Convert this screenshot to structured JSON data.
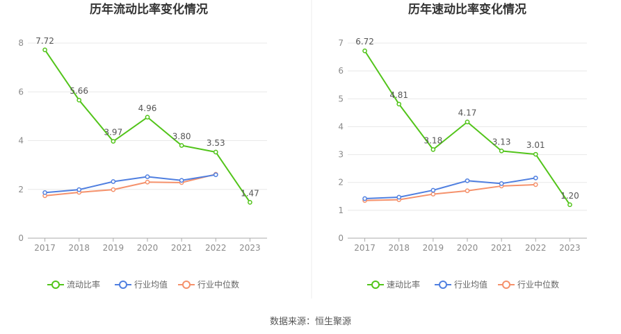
{
  "colors": {
    "primary": "#52c41a",
    "industry_avg": "#4f7fe0",
    "industry_median": "#f5916b",
    "grid": "#e8e8e8",
    "axis": "#aaaaaa",
    "divider": "#eeeeee"
  },
  "source_text": "数据来源：恒生聚源",
  "chart_data": [
    {
      "type": "line",
      "title": "历年流动比率变化情况",
      "xlabel": "",
      "ylabel": "",
      "categories": [
        "2017",
        "2018",
        "2019",
        "2020",
        "2021",
        "2022",
        "2023"
      ],
      "ylim": [
        0,
        8
      ],
      "yticks": [
        0,
        2,
        4,
        6,
        8
      ],
      "grid": true,
      "legend_position": "bottom",
      "series": [
        {
          "name": "流动比率",
          "color_key": "primary",
          "values": [
            7.72,
            5.66,
            3.97,
            4.96,
            3.8,
            3.53,
            1.47
          ],
          "labels": [
            "7.72",
            "5.66",
            "3.97",
            "4.96",
            "3.80",
            "3.53",
            "1.47"
          ]
        },
        {
          "name": "行业均值",
          "color_key": "industry_avg",
          "values": [
            1.87,
            1.99,
            2.32,
            2.52,
            2.37,
            2.6,
            null
          ]
        },
        {
          "name": "行业中位数",
          "color_key": "industry_median",
          "values": [
            1.74,
            1.88,
            1.99,
            2.3,
            2.28,
            2.62,
            null
          ]
        }
      ]
    },
    {
      "type": "line",
      "title": "历年速动比率变化情况",
      "xlabel": "",
      "ylabel": "",
      "categories": [
        "2017",
        "2018",
        "2019",
        "2020",
        "2021",
        "2022",
        "2023"
      ],
      "ylim": [
        0,
        7
      ],
      "yticks": [
        0,
        1,
        2,
        3,
        4,
        5,
        6,
        7
      ],
      "grid": true,
      "legend_position": "bottom",
      "series": [
        {
          "name": "速动比率",
          "color_key": "primary",
          "values": [
            6.72,
            4.81,
            3.18,
            4.17,
            3.13,
            3.01,
            1.2
          ],
          "labels": [
            "6.72",
            "4.81",
            "3.18",
            "4.17",
            "3.13",
            "3.01",
            "1.20"
          ]
        },
        {
          "name": "行业均值",
          "color_key": "industry_avg",
          "values": [
            1.42,
            1.47,
            1.72,
            2.06,
            1.96,
            2.16,
            null
          ]
        },
        {
          "name": "行业中位数",
          "color_key": "industry_median",
          "values": [
            1.35,
            1.38,
            1.58,
            1.7,
            1.87,
            1.92,
            null
          ]
        }
      ]
    }
  ]
}
